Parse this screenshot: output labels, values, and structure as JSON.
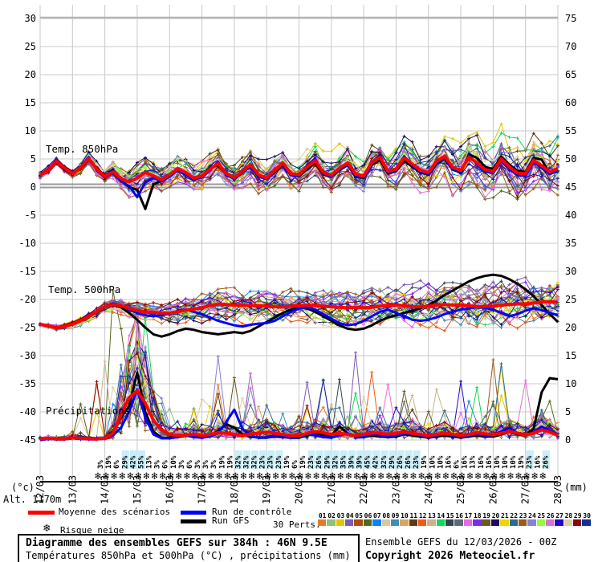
{
  "title_box": {
    "line1": "Diagramme des ensembles GEFS sur 384h : 46N 9.5E",
    "line2": "Températures 850hPa et 500hPa (°C) , précipitations (mm)"
  },
  "credits": {
    "line1": "Ensemble GEFS du 12/03/2026 - 00Z",
    "line2": "Copyright 2026 Meteociel.fr"
  },
  "legend": {
    "mean": {
      "label": "Moyenne des scénarios",
      "color": "#ff0000"
    },
    "control": {
      "label": "Run de contrôle",
      "color": "#0000ff"
    },
    "gfs": {
      "label": "Run GFS",
      "color": "#000000"
    },
    "perts_label": "30 Perts.",
    "snow": {
      "label": "Risque neige",
      "glyph": "❄",
      "color": "#7cc4e8"
    }
  },
  "annotations": {
    "temp850": "Temp. 850hPa",
    "temp500": "Temp. 500hPa",
    "precip": "Précipitations"
  },
  "axes": {
    "left_unit": "(°c)",
    "right_unit": "(mm)",
    "alt_label": "Alt. 1170m",
    "left_ticks": [
      "30",
      "25",
      "20",
      "15",
      "10",
      "5",
      "0",
      "-5",
      "-10",
      "-15",
      "-20",
      "-25",
      "-30",
      "-35",
      "-40",
      "-45"
    ],
    "right_ticks": [
      "75",
      "70",
      "65",
      "60",
      "55",
      "50",
      "45",
      "40",
      "35",
      "30",
      "25",
      "20",
      "15",
      "10",
      "5",
      "0"
    ],
    "dates": [
      "12/03",
      "13/03",
      "14/03",
      "15/03",
      "16/03",
      "17/03",
      "18/03",
      "19/03",
      "20/03",
      "21/03",
      "22/03",
      "23/03",
      "24/03",
      "25/03",
      "26/03",
      "27/03",
      "28/03"
    ]
  },
  "members": {
    "labels": [
      "01",
      "02",
      "03",
      "04",
      "05",
      "06",
      "07",
      "08",
      "09",
      "10",
      "11",
      "12",
      "13",
      "14",
      "15",
      "16",
      "17",
      "18",
      "19",
      "20",
      "21",
      "22",
      "23",
      "24",
      "25",
      "26",
      "27",
      "28",
      "29",
      "30"
    ],
    "colors": [
      "#e87824",
      "#8cc07c",
      "#e4c400",
      "#8058b8",
      "#b04a10",
      "#50691a",
      "#1080f8",
      "#d8c8a0",
      "#3e8fb0",
      "#dca45c",
      "#5c3a14",
      "#f05818",
      "#c8b488",
      "#10d858",
      "#32444e",
      "#5e6a72",
      "#ee66e0",
      "#7c2cf0",
      "#6a5a20",
      "#200a60",
      "#eed400",
      "#2e6a90",
      "#9a5a1e",
      "#8480e0",
      "#90fc3c",
      "#dc70d0",
      "#2404c8",
      "#decfa6",
      "#8e0404",
      "#123093"
    ]
  },
  "snow_risk": {
    "start_day": 13.85,
    "step_day": 0.25,
    "flake_glyph": "❄",
    "flake_color": "#7cc4e8",
    "text_color": "#2222cc",
    "highlight_color": "#c8eef8",
    "highlight_min": 23,
    "values": [
      3,
      19,
      6,
      29,
      42,
      55,
      13,
      3,
      6,
      10,
      3,
      6,
      3,
      3,
      3,
      19,
      19,
      32,
      32,
      32,
      23,
      23,
      23,
      19,
      6,
      19,
      23,
      26,
      29,
      32,
      35,
      39,
      39,
      45,
      42,
      32,
      29,
      26,
      26,
      23,
      19,
      10,
      10,
      16,
      6,
      16,
      13,
      16,
      16,
      10,
      10,
      10,
      19,
      23,
      16,
      26
    ]
  },
  "chart_data": {
    "type": "line",
    "title": "Diagramme des ensembles GEFS sur 384h : 46N 9.5E",
    "x_start_day": 12,
    "x_end_day": 28,
    "x_step_day": 0.25,
    "x_tick_labels": [
      "12/03",
      "13/03",
      "14/03",
      "15/03",
      "16/03",
      "17/03",
      "18/03",
      "19/03",
      "20/03",
      "21/03",
      "22/03",
      "23/03",
      "24/03",
      "25/03",
      "26/03",
      "27/03",
      "28/03"
    ],
    "y_left_label": "(°c)",
    "y_left_range": [
      -45,
      30
    ],
    "y_right_label": "(mm)",
    "y_right_range": [
      0,
      75
    ],
    "grid": true,
    "series": {
      "mean850": [
        2.1,
        3.0,
        4.6,
        3.4,
        2.4,
        3.4,
        5.1,
        3.2,
        1.9,
        2.7,
        1.5,
        0.9,
        1.6,
        2.6,
        2.0,
        1.3,
        2.2,
        3.3,
        2.6,
        1.6,
        2.0,
        3.2,
        4.2,
        2.4,
        1.7,
        2.8,
        4.0,
        2.2,
        1.6,
        3.0,
        4.3,
        2.4,
        2.2,
        3.6,
        4.7,
        2.6,
        2.1,
        3.4,
        4.3,
        2.3,
        2.0,
        4.4,
        5.3,
        2.8,
        3.2,
        5.2,
        4.1,
        3.0,
        2.6,
        4.6,
        5.5,
        3.5,
        3.0,
        5.3,
        4.3,
        3.1,
        2.8,
        5.0,
        3.6,
        2.5,
        2.4,
        4.8,
        3.8,
        2.7,
        3.3
      ],
      "control850": [
        2.0,
        3.1,
        4.8,
        3.2,
        2.3,
        3.6,
        5.3,
        3.0,
        1.8,
        2.5,
        1.0,
        0.2,
        -1.8,
        0.8,
        1.6,
        1.0,
        1.9,
        3.0,
        2.2,
        1.3,
        1.8,
        3.0,
        4.5,
        2.1,
        1.5,
        2.6,
        3.6,
        1.9,
        1.4,
        2.8,
        4.0,
        2.1,
        2.0,
        3.8,
        5.0,
        2.4,
        1.8,
        3.1,
        4.0,
        2.0,
        1.7,
        4.1,
        5.6,
        2.5,
        2.9,
        5.5,
        3.8,
        2.7,
        2.3,
        4.3,
        5.2,
        3.2,
        2.7,
        5.6,
        4.0,
        2.8,
        2.5,
        4.6,
        3.2,
        2.1,
        2.0,
        4.4,
        3.4,
        2.3,
        2.9
      ],
      "gfs850": [
        2.2,
        3.2,
        4.4,
        3.6,
        2.5,
        3.2,
        4.9,
        3.4,
        2.0,
        2.9,
        1.2,
        0.0,
        -0.5,
        -3.9,
        0.5,
        1.1,
        2.0,
        3.1,
        2.4,
        1.4,
        1.9,
        3.4,
        3.9,
        2.2,
        1.5,
        2.5,
        3.7,
        2.0,
        1.4,
        2.6,
        4.0,
        2.2,
        1.9,
        3.2,
        4.4,
        2.3,
        1.8,
        3.0,
        3.9,
        1.9,
        1.6,
        3.9,
        4.8,
        2.4,
        2.8,
        4.7,
        3.6,
        2.6,
        2.2,
        4.1,
        5.0,
        3.1,
        2.6,
        5.8,
        5.2,
        3.6,
        3.2,
        5.4,
        4.0,
        2.9,
        2.7,
        5.2,
        4.9,
        2.4,
        2.8
      ],
      "mean500": [
        -24.4,
        -24.7,
        -25.0,
        -24.8,
        -24.4,
        -23.8,
        -23.0,
        -22.2,
        -21.3,
        -20.9,
        -21.1,
        -21.6,
        -22.0,
        -22.2,
        -22.3,
        -22.4,
        -22.4,
        -22.2,
        -21.9,
        -21.7,
        -21.5,
        -21.1,
        -20.8,
        -20.9,
        -21.0,
        -21.0,
        -21.1,
        -21.1,
        -21.2,
        -21.3,
        -21.3,
        -21.2,
        -21.1,
        -21.0,
        -21.1,
        -21.2,
        -21.3,
        -21.4,
        -21.5,
        -21.4,
        -21.5,
        -21.4,
        -21.2,
        -21.1,
        -21.0,
        -21.1,
        -21.3,
        -21.3,
        -21.2,
        -21.0,
        -20.9,
        -21.0,
        -21.0,
        -21.1,
        -21.3,
        -21.2,
        -21.2,
        -21.0,
        -20.9,
        -20.8,
        -20.8,
        -20.6,
        -20.5,
        -20.4,
        -20.5
      ],
      "control500": [
        -24.4,
        -24.7,
        -25.0,
        -24.8,
        -24.4,
        -23.8,
        -23.0,
        -22.1,
        -21.2,
        -20.7,
        -21.0,
        -21.8,
        -22.4,
        -22.8,
        -23.0,
        -22.8,
        -22.5,
        -22.0,
        -21.8,
        -22.2,
        -22.6,
        -23.2,
        -23.8,
        -24.2,
        -24.6,
        -24.8,
        -24.5,
        -24.3,
        -24.2,
        -23.8,
        -23.0,
        -22.2,
        -21.6,
        -21.4,
        -21.8,
        -22.6,
        -23.4,
        -24.2,
        -24.6,
        -24.4,
        -23.8,
        -23.0,
        -22.2,
        -21.8,
        -22.4,
        -23.0,
        -23.6,
        -23.8,
        -23.6,
        -23.2,
        -22.6,
        -22.2,
        -21.8,
        -21.6,
        -21.4,
        -21.5,
        -21.8,
        -22.4,
        -23.0,
        -22.6,
        -22.0,
        -21.6,
        -21.9,
        -22.4,
        -22.8
      ],
      "gfs500": [
        -24.4,
        -24.7,
        -25.0,
        -24.8,
        -24.4,
        -23.8,
        -23.1,
        -22.3,
        -21.4,
        -21.0,
        -21.4,
        -22.4,
        -23.6,
        -25.0,
        -26.2,
        -26.6,
        -26.2,
        -25.6,
        -25.2,
        -25.4,
        -25.8,
        -26.0,
        -26.2,
        -26.0,
        -25.8,
        -26.0,
        -25.6,
        -24.8,
        -24.0,
        -23.2,
        -22.4,
        -21.8,
        -21.4,
        -21.6,
        -22.2,
        -23.0,
        -23.8,
        -24.6,
        -25.2,
        -25.4,
        -25.2,
        -24.6,
        -23.8,
        -23.2,
        -22.8,
        -22.4,
        -22.0,
        -21.6,
        -21.0,
        -20.2,
        -19.2,
        -18.4,
        -17.6,
        -16.8,
        -16.2,
        -15.8,
        -15.6,
        -15.8,
        -16.4,
        -17.2,
        -18.2,
        -19.4,
        -21.0,
        -22.6,
        -24.0
      ],
      "mean_precip": [
        0.2,
        0.3,
        0.2,
        0.2,
        0.4,
        0.3,
        0.2,
        0.2,
        0.3,
        1.2,
        4.5,
        7.5,
        8.8,
        6.5,
        3.5,
        1.8,
        1.0,
        0.8,
        0.9,
        1.0,
        0.8,
        1.0,
        1.3,
        1.2,
        1.0,
        0.8,
        1.0,
        1.2,
        1.4,
        1.2,
        1.0,
        0.8,
        0.8,
        1.2,
        1.5,
        1.3,
        1.0,
        1.2,
        1.0,
        0.8,
        1.0,
        1.3,
        1.2,
        1.0,
        1.2,
        1.4,
        1.2,
        1.0,
        0.8,
        1.0,
        1.2,
        1.0,
        0.8,
        1.0,
        1.3,
        1.1,
        0.9,
        1.2,
        1.5,
        1.2,
        0.9,
        1.2,
        1.8,
        1.4,
        0.8
      ],
      "control_precip": [
        0.0,
        0.2,
        0.1,
        0.1,
        0.3,
        0.2,
        0.1,
        0.1,
        0.2,
        0.8,
        2.2,
        5.0,
        9.0,
        4.0,
        1.0,
        0.3,
        0.3,
        0.5,
        0.8,
        0.5,
        0.4,
        0.6,
        1.2,
        3.2,
        5.4,
        2.0,
        0.8,
        0.4,
        0.5,
        0.8,
        0.6,
        0.4,
        0.5,
        1.0,
        0.8,
        0.5,
        0.4,
        0.8,
        1.2,
        0.8,
        0.6,
        1.0,
        0.8,
        0.6,
        0.8,
        1.2,
        1.0,
        0.8,
        0.5,
        0.8,
        1.0,
        0.8,
        0.5,
        0.8,
        1.0,
        0.8,
        0.8,
        1.5,
        2.2,
        1.2,
        0.8,
        1.4,
        2.4,
        1.6,
        0.8
      ],
      "gfs_precip": [
        0.0,
        0.2,
        0.1,
        0.1,
        0.3,
        0.2,
        0.2,
        0.1,
        0.3,
        1.5,
        4.0,
        6.0,
        12.0,
        5.0,
        1.5,
        0.4,
        0.4,
        0.8,
        1.0,
        0.6,
        0.5,
        0.8,
        1.6,
        2.8,
        2.2,
        1.0,
        0.6,
        0.4,
        0.4,
        0.6,
        0.5,
        0.4,
        0.4,
        0.8,
        1.2,
        0.8,
        0.8,
        2.4,
        1.2,
        0.6,
        0.5,
        0.8,
        0.6,
        0.5,
        0.6,
        1.0,
        0.8,
        0.6,
        0.4,
        0.6,
        0.8,
        0.6,
        0.4,
        0.6,
        0.8,
        0.6,
        0.6,
        1.0,
        1.4,
        1.0,
        0.8,
        2.0,
        8.5,
        11.0,
        10.8
      ]
    },
    "ensemble": {
      "member_count": 30,
      "spread850_daily": [
        0.6,
        0.9,
        1.6,
        3.0,
        2.4,
        2.5,
        2.8,
        3.0,
        3.0,
        3.2,
        3.5,
        3.8,
        4.5,
        5.0,
        5.0,
        5.5,
        6.0
      ],
      "spread500_daily": [
        0.3,
        0.7,
        1.0,
        1.8,
        2.0,
        2.5,
        3.0,
        3.0,
        3.0,
        3.2,
        3.5,
        3.5,
        3.8,
        4.0,
        4.2,
        4.5,
        4.8
      ],
      "precip_max_daily": [
        1,
        1.5,
        28,
        30,
        7,
        14,
        13,
        15,
        13,
        14,
        20,
        17,
        15,
        12,
        18,
        14,
        11
      ]
    }
  }
}
